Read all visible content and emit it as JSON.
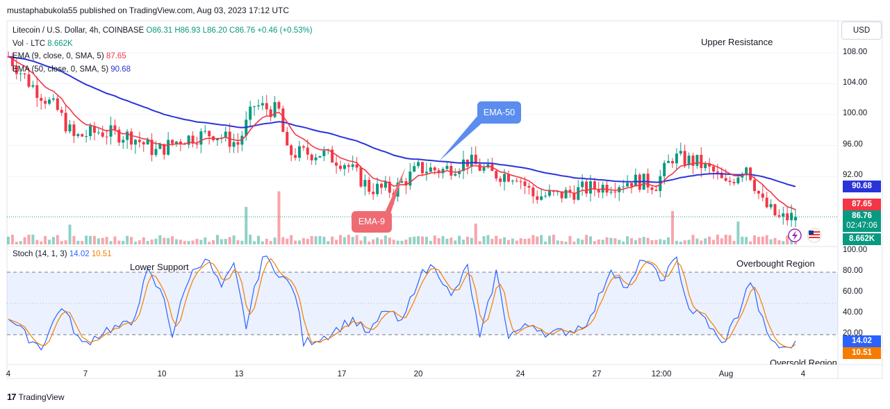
{
  "header": {
    "published": "mustaphabukola55 published on TradingView.com, Aug 03, 2023 17:12 UTC"
  },
  "legend": {
    "symbol": "Litecoin / U.S. Dollar, 4h, COINBASE",
    "open": "O86.31",
    "high": "H86.93",
    "low": "L86.20",
    "close": "C86.76",
    "change": "+0.46 (+0.53%)",
    "vol_label": "Vol · LTC",
    "vol_value": "8.662K",
    "ema9_label": "EMA (9, close, 0, SMA, 5)",
    "ema9_value": "87.65",
    "ema50_label": "EMA (50, close, 0, SMA, 5)",
    "ema50_value": "90.68"
  },
  "stoch_legend": {
    "label": "Stoch (14, 1, 3)",
    "k_value": "14.02",
    "d_value": "10.51"
  },
  "price_axis": {
    "currency": "USD",
    "ticks": [
      "108.00",
      "104.00",
      "100.00",
      "96.00",
      "92.00"
    ],
    "tags": {
      "ema50": "90.68",
      "ema9": "87.65",
      "price": "86.76",
      "countdown": "02:47:06",
      "volume": "8.662K"
    }
  },
  "stoch_axis": {
    "ticks": [
      "100.00",
      "80.00",
      "60.00",
      "40.00",
      "20.00"
    ],
    "tags": {
      "k": "14.02",
      "d": "10.51"
    }
  },
  "time_axis": [
    "4",
    "7",
    "10",
    "13",
    "17",
    "20",
    "24",
    "27",
    "12:00",
    "Aug",
    "4"
  ],
  "annotations": {
    "upper_resistance": "Upper Resistance",
    "lower_support": "Lower Support",
    "overbought": "Overbought Region",
    "oversold": "Oversold Region",
    "ema50_callout": "EMA-50",
    "ema9_callout": "EMA-9"
  },
  "footer": {
    "brand": "TradingView"
  },
  "colors": {
    "up": "#089981",
    "down": "#f23645",
    "ema9": "#f23645",
    "ema50": "#2934d8",
    "stoch_k": "#2962ff",
    "stoch_d": "#f57c00",
    "callout_blue": "#5b8def",
    "callout_red": "#ef6b74"
  },
  "chart_data": [
    {
      "type": "candlestick",
      "title": "Litecoin / U.S. Dollar, 4h, COINBASE",
      "ylim": [
        86,
        108
      ],
      "y_ticks": [
        108,
        104,
        100,
        96,
        92
      ],
      "x_ticks": [
        "4",
        "7",
        "10",
        "13",
        "17",
        "20",
        "24",
        "27",
        "12:00",
        "Aug",
        "4"
      ],
      "anchors": [
        {
          "i": 0,
          "v": 107.5
        },
        {
          "i": 5,
          "v": 104.2
        },
        {
          "i": 12,
          "v": 100.5
        },
        {
          "i": 16,
          "v": 97.0
        },
        {
          "i": 22,
          "v": 97.8
        },
        {
          "i": 30,
          "v": 97.2
        },
        {
          "i": 36,
          "v": 95.2
        },
        {
          "i": 42,
          "v": 96.8
        },
        {
          "i": 50,
          "v": 97.6
        },
        {
          "i": 56,
          "v": 96.2
        },
        {
          "i": 60,
          "v": 101.2
        },
        {
          "i": 66,
          "v": 100.4
        },
        {
          "i": 68,
          "v": 95.0
        },
        {
          "i": 76,
          "v": 95.0
        },
        {
          "i": 82,
          "v": 93.8
        },
        {
          "i": 88,
          "v": 90.5
        },
        {
          "i": 94,
          "v": 90.2
        },
        {
          "i": 100,
          "v": 93.0
        },
        {
          "i": 106,
          "v": 92.8
        },
        {
          "i": 112,
          "v": 94.0
        },
        {
          "i": 118,
          "v": 92.3
        },
        {
          "i": 124,
          "v": 92.2
        },
        {
          "i": 128,
          "v": 89.5
        },
        {
          "i": 134,
          "v": 89.5
        },
        {
          "i": 140,
          "v": 90.3
        },
        {
          "i": 146,
          "v": 90.8
        },
        {
          "i": 152,
          "v": 91.5
        },
        {
          "i": 158,
          "v": 91.0
        },
        {
          "i": 162,
          "v": 94.5
        },
        {
          "i": 168,
          "v": 93.8
        },
        {
          "i": 172,
          "v": 92.5
        },
        {
          "i": 175,
          "v": 90.8
        },
        {
          "i": 180,
          "v": 93.5
        },
        {
          "i": 184,
          "v": 88.5
        },
        {
          "i": 188,
          "v": 86.5
        },
        {
          "i": 192,
          "v": 86.8
        }
      ],
      "volume": {
        "name": "Vol · LTC",
        "last": 8.662,
        "spikes": [
          {
            "i": 15,
            "v": 1.9
          },
          {
            "i": 58,
            "v": 3.6
          },
          {
            "i": 66,
            "v": 5.1
          },
          {
            "i": 114,
            "v": 2.0
          },
          {
            "i": 162,
            "v": 3.2
          },
          {
            "i": 178,
            "v": 2.2
          }
        ]
      },
      "ema": [
        {
          "name": "EMA (9, close, 0, SMA, 5)",
          "last": 87.65
        },
        {
          "name": "EMA (50, close, 0, SMA, 5)",
          "last": 90.68
        }
      ],
      "last": {
        "open": 86.31,
        "high": 86.93,
        "low": 86.2,
        "close": 86.76
      }
    },
    {
      "type": "line",
      "title": "Stoch (14, 1, 3)",
      "ylim": [
        0,
        100
      ],
      "y_ticks": [
        100,
        80,
        60,
        40,
        20
      ],
      "bands": {
        "upper": 80,
        "middle": 50,
        "lower": 20
      },
      "series": [
        {
          "name": "%K",
          "last": 14.02,
          "anchors": [
            {
              "i": 0,
              "v": 38
            },
            {
              "i": 4,
              "v": 20
            },
            {
              "i": 8,
              "v": 8
            },
            {
              "i": 13,
              "v": 48
            },
            {
              "i": 18,
              "v": 10
            },
            {
              "i": 24,
              "v": 25
            },
            {
              "i": 30,
              "v": 30
            },
            {
              "i": 34,
              "v": 80
            },
            {
              "i": 38,
              "v": 55
            },
            {
              "i": 40,
              "v": 20
            },
            {
              "i": 44,
              "v": 75
            },
            {
              "i": 48,
              "v": 95
            },
            {
              "i": 52,
              "v": 65
            },
            {
              "i": 55,
              "v": 85
            },
            {
              "i": 58,
              "v": 28
            },
            {
              "i": 62,
              "v": 95
            },
            {
              "i": 66,
              "v": 80
            },
            {
              "i": 70,
              "v": 60
            },
            {
              "i": 72,
              "v": 12
            },
            {
              "i": 78,
              "v": 20
            },
            {
              "i": 84,
              "v": 35
            },
            {
              "i": 88,
              "v": 20
            },
            {
              "i": 92,
              "v": 45
            },
            {
              "i": 96,
              "v": 30
            },
            {
              "i": 100,
              "v": 75
            },
            {
              "i": 104,
              "v": 88
            },
            {
              "i": 108,
              "v": 55
            },
            {
              "i": 112,
              "v": 85
            },
            {
              "i": 115,
              "v": 15
            },
            {
              "i": 119,
              "v": 80
            },
            {
              "i": 122,
              "v": 20
            },
            {
              "i": 128,
              "v": 30
            },
            {
              "i": 132,
              "v": 20
            },
            {
              "i": 138,
              "v": 25
            },
            {
              "i": 142,
              "v": 35
            },
            {
              "i": 147,
              "v": 85
            },
            {
              "i": 151,
              "v": 62
            },
            {
              "i": 155,
              "v": 95
            },
            {
              "i": 159,
              "v": 72
            },
            {
              "i": 163,
              "v": 92
            },
            {
              "i": 166,
              "v": 45
            },
            {
              "i": 170,
              "v": 35
            },
            {
              "i": 174,
              "v": 10
            },
            {
              "i": 178,
              "v": 40
            },
            {
              "i": 181,
              "v": 72
            },
            {
              "i": 185,
              "v": 20
            },
            {
              "i": 189,
              "v": 5
            },
            {
              "i": 192,
              "v": 14
            }
          ]
        },
        {
          "name": "%D",
          "last": 10.51
        }
      ],
      "annotations": [
        "Lower Support",
        "Overbought Region",
        "Oversold Region"
      ]
    }
  ]
}
